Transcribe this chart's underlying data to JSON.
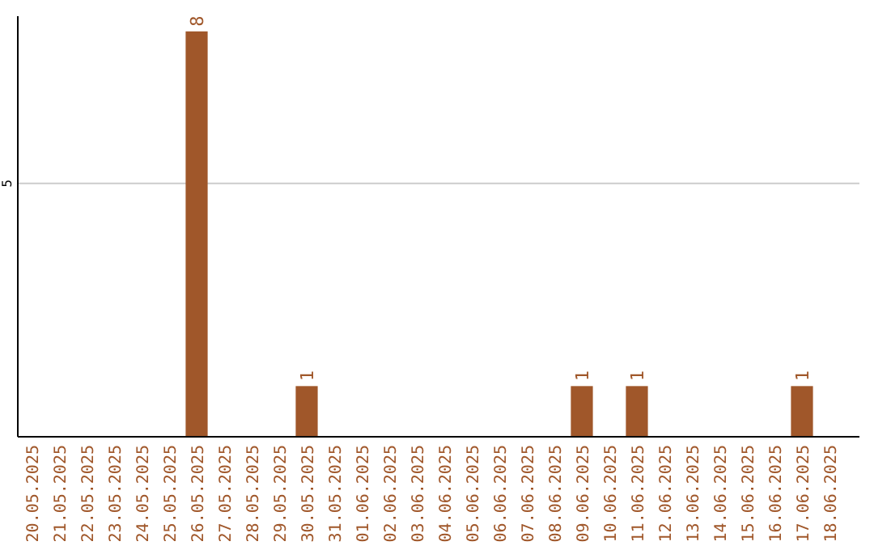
{
  "chart_data": {
    "type": "bar",
    "categories": [
      "20.05.2025",
      "21.05.2025",
      "22.05.2025",
      "23.05.2025",
      "24.05.2025",
      "25.05.2025",
      "26.05.2025",
      "27.05.2025",
      "28.05.2025",
      "29.05.2025",
      "30.05.2025",
      "31.05.2025",
      "01.06.2025",
      "02.06.2025",
      "03.06.2025",
      "04.06.2025",
      "05.06.2025",
      "06.06.2025",
      "07.06.2025",
      "08.06.2025",
      "09.06.2025",
      "10.06.2025",
      "11.06.2025",
      "12.06.2025",
      "13.06.2025",
      "14.06.2025",
      "15.06.2025",
      "16.06.2025",
      "17.06.2025",
      "18.06.2025"
    ],
    "values": [
      0,
      0,
      0,
      0,
      0,
      0,
      8,
      0,
      0,
      0,
      1,
      0,
      0,
      0,
      0,
      0,
      0,
      0,
      0,
      0,
      1,
      0,
      1,
      0,
      0,
      0,
      0,
      0,
      1,
      0
    ],
    "value_labels": [
      null,
      null,
      null,
      null,
      null,
      null,
      "8",
      null,
      null,
      null,
      "1",
      null,
      null,
      null,
      null,
      null,
      null,
      null,
      null,
      null,
      "1",
      null,
      "1",
      null,
      null,
      null,
      null,
      null,
      "1",
      null
    ],
    "color": "#a0572a",
    "ylim": [
      0,
      8.3
    ],
    "yticks": [
      5
    ],
    "grid": "y"
  }
}
